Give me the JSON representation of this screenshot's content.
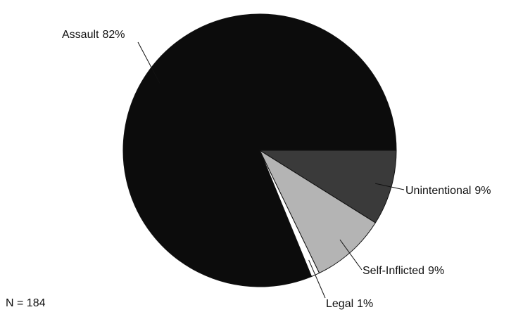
{
  "chart_data": {
    "type": "pie",
    "categories": [
      "Unintentional",
      "Self-Inflicted",
      "Legal",
      "Assault"
    ],
    "values": [
      9,
      9,
      1,
      82
    ],
    "value_labels": [
      "9%",
      "9%",
      "1%",
      "82%"
    ],
    "colors": [
      "#3a3a3a",
      "#b4b4b4",
      "#ffffff",
      "#0c0c0c"
    ],
    "annotation": "N = 184"
  }
}
